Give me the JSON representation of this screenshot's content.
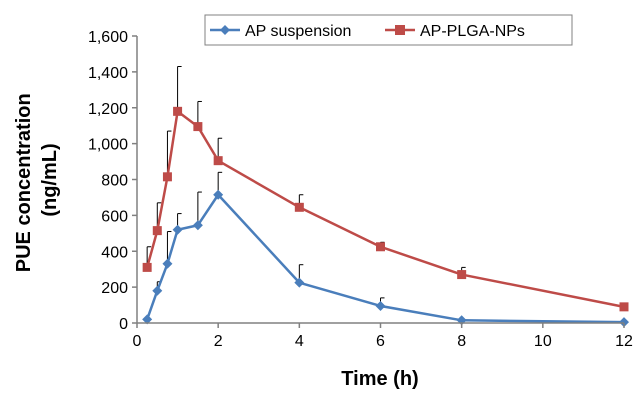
{
  "chart_data": {
    "type": "line",
    "title": "",
    "xlabel": "Time (h)",
    "ylabel_lines": [
      "PUE concentration",
      "(ng/mL)"
    ],
    "xlim": [
      0,
      12
    ],
    "ylim": [
      0,
      1600
    ],
    "x_ticks": [
      0,
      2,
      4,
      6,
      8,
      10,
      12
    ],
    "y_ticks": [
      0,
      200,
      400,
      600,
      800,
      1000,
      1200,
      1400,
      1600
    ],
    "x_tick_labels": [
      "0",
      "2",
      "4",
      "6",
      "8",
      "10",
      "12"
    ],
    "y_tick_labels": [
      "0",
      "200",
      "400",
      "600",
      "800",
      "1,000",
      "1,200",
      "1,400",
      "1,600"
    ],
    "grid": false,
    "legend_position": "top-right",
    "series": [
      {
        "name": "AP suspension",
        "color": "#4a7ebb",
        "marker": "diamond",
        "x": [
          0.25,
          0.5,
          0.75,
          1,
          1.5,
          2,
          4,
          6,
          8,
          12
        ],
        "y": [
          20,
          180,
          330,
          520,
          545,
          715,
          225,
          95,
          15,
          5
        ],
        "error_upper": [
          0,
          50,
          180,
          90,
          185,
          125,
          100,
          45,
          0,
          0
        ]
      },
      {
        "name": "AP-PLGA-NPs",
        "color": "#be4b48",
        "marker": "square",
        "x": [
          0.25,
          0.5,
          0.75,
          1,
          1.5,
          2,
          4,
          6,
          8,
          12
        ],
        "y": [
          310,
          515,
          815,
          1180,
          1095,
          905,
          645,
          425,
          270,
          90
        ],
        "error_upper": [
          115,
          155,
          255,
          250,
          140,
          125,
          70,
          25,
          40,
          0
        ]
      }
    ]
  }
}
